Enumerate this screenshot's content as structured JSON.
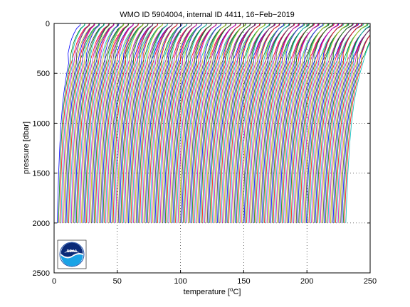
{
  "chart_data": {
    "type": "line",
    "title": "WMO ID 5904004, internal ID 4411, 16−Feb−2019",
    "xlabel": "temperature [°C]",
    "xlabel_main": "temperature [",
    "xlabel_unit": "C]",
    "ylabel": "pressure [dbar]",
    "xlim": [
      0,
      250
    ],
    "ylim": [
      0,
      2500
    ],
    "y_reversed": true,
    "grid": "dotted",
    "xticks": [
      0,
      50,
      100,
      150,
      200,
      250
    ],
    "yticks": [
      0,
      500,
      1000,
      1500,
      2000,
      2500
    ],
    "xtick_labels": [
      "0",
      "50",
      "100",
      "150",
      "200",
      "250"
    ],
    "ytick_labels": [
      "0",
      "500",
      "1000",
      "1500",
      "2000",
      "2500"
    ],
    "profiles": {
      "count": 228,
      "offset_step": 1,
      "first_offset": 0,
      "max_pressure": 2000,
      "base_profile": {
        "pressure": [
          0,
          20,
          50,
          100,
          150,
          200,
          300,
          400,
          500,
          600,
          700,
          800,
          1000,
          1200,
          1500,
          1800,
          2000
        ],
        "temperature": [
          24.5,
          24.0,
          21.0,
          18.5,
          16.5,
          15.0,
          13.0,
          11.5,
          10.0,
          8.8,
          7.7,
          6.8,
          5.5,
          4.6,
          3.6,
          2.9,
          2.5
        ]
      }
    },
    "colors": [
      "#0000ff",
      "#008000",
      "#ff0000",
      "#00bfbf",
      "#bf00bf",
      "#bfbf00",
      "#404040"
    ],
    "logo": {
      "name": "noaa-logo",
      "text": "NOAA"
    }
  }
}
